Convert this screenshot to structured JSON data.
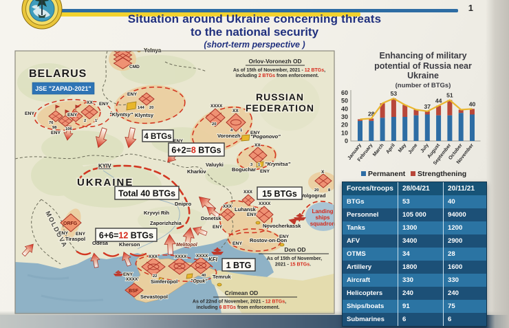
{
  "header": {
    "title_line1": "Situation around Ukraine concerning threats",
    "title_line2": "to the national security",
    "title_line3": "(short-term perspective )",
    "page_number": "1"
  },
  "chart": {
    "title_line1": "Enhancing of military",
    "title_line2": "potential of Russia near",
    "title_line3": "Ukraine",
    "subtitle": "(number of BTGs)"
  },
  "chart_data": {
    "type": "bar",
    "stacked": true,
    "categories": [
      "January",
      "February",
      "March",
      "April",
      "May",
      "June",
      "July",
      "August",
      "September",
      "October",
      "November"
    ],
    "series": [
      {
        "name": "Permanent",
        "color": "#2e6da4",
        "values": [
          25,
          25,
          29,
          30,
          30,
          32,
          33,
          32,
          32,
          35,
          33
        ]
      },
      {
        "name": "Strengthening",
        "color": "#b8473a",
        "values": [
          2,
          3,
          18,
          23,
          15,
          7,
          4,
          12,
          19,
          4,
          7
        ]
      }
    ],
    "totals": [
      27,
      28,
      47,
      53,
      45,
      39,
      37,
      44,
      51,
      39,
      40
    ],
    "total_labels": [
      null,
      28,
      null,
      53,
      null,
      null,
      37,
      44,
      51,
      null,
      40
    ],
    "line_color": "#e9b62f",
    "title": "Enhancing of military potential of Russia near Ukraine (number of BTGs)",
    "xlabel": "",
    "ylabel": "",
    "ylim": [
      0,
      60
    ],
    "yticks": [
      0,
      10,
      20,
      30,
      40,
      50,
      60
    ],
    "legend_position": "bottom",
    "grid": false
  },
  "table": {
    "headers": [
      "Forces/troops",
      "28/04/21",
      "20/11/21"
    ],
    "rows": [
      [
        "BTGs",
        "53",
        "40"
      ],
      [
        "Personnel",
        "105 000",
        "94000"
      ],
      [
        "Tanks",
        "1300",
        "1200"
      ],
      [
        "AFV",
        "3400",
        "2900"
      ],
      [
        "OTMS",
        "34",
        "28"
      ],
      [
        "Artillery",
        "1800",
        "1600"
      ],
      [
        "Aircraft",
        "330",
        "330"
      ],
      [
        "Helicopters",
        "240",
        "240"
      ],
      [
        "Ships/boats",
        "91",
        "75"
      ],
      [
        "Submarines",
        "6",
        "6"
      ]
    ]
  },
  "map": {
    "countries": {
      "belarus": "BELARUS",
      "russia_line1": "RUSSIAN",
      "russia_line2": "FEDERATION",
      "ukraine": "UKRAINE",
      "moldova": "MOLDOVA"
    },
    "exercise_label": "JSE \"ZAPAD-2021\"",
    "cities": {
      "yelnya": "Yelnya",
      "klyntsy_range": "\"Klyntsy\"",
      "klyntsy": "Klyntsy",
      "kyiv": "KYIV",
      "kharkiv": "Kharkiv",
      "valuyki": "Valuyki",
      "boguchar": "Boguchar",
      "voronezh": "Voronezh",
      "pogonovo": "\"Pogonovo\"",
      "krynitsa": "\"Krynitsa\"",
      "dnipro": "Dnipro",
      "kryvyi_rih": "Kryvyi Rih",
      "zaporizhzhia": "Zaporizhzhia",
      "donetsk": "Donetsk",
      "luhansk": "Luhansk",
      "novocherkassk": "Novocherkassk",
      "rostov": "Rostov-on-Don",
      "volgograd": "Volgograd",
      "tiraspol": "Tiraspol",
      "odesa": "Odesa",
      "kherson": "Kherson",
      "melitopol": "Melitopol",
      "opuk": "\"Opuk\"",
      "simferopol": "Simferopol",
      "sevastopol": "Sevastopol",
      "temruk": "Temruk"
    },
    "markers": {
      "cmd": "CMD",
      "eny": "ENY",
      "bsf": "BSF",
      "orfg": "ORFG",
      "kfl": "KFl",
      "x": "X",
      "xx": "XX",
      "xxx": "XXX",
      "xxxx": "XXXX",
      "xxxx_naval": "XXXX'"
    },
    "unit_numbers": {
      "n2": "2",
      "n1": "1",
      "n144": "144",
      "n20": "20",
      "n98": "98",
      "n106": "106",
      "n76": "76",
      "n4": "4",
      "n3": "3",
      "n22": "22",
      "n40": "40",
      "n8": "8"
    },
    "btg_boxes": {
      "btg4": "4 BTGs",
      "btg8_pre": "6+2=",
      "btg8_red": "8",
      "btg8_post": " BTGs",
      "total": "Total 40 BTGs",
      "btg15": "15 BTGs",
      "btg12_pre": "6+6=",
      "btg12_red": "12",
      "btg12_post": " BTGs",
      "btg1": "1 BTG"
    },
    "od_notes": {
      "orlov_title": "Orlov-Voronezh OD",
      "orlov_line1_pre": "As of 15th of November, 2021 - ",
      "orlov_line1_red": "12 BTGs",
      "orlov_line1_post": ",",
      "orlov_line2_pre": "including ",
      "orlov_line2_red": "2 BTGs",
      "orlov_line2_post": " from enforcement.",
      "don_title": "Don OD",
      "don_line1": "As of 15th of November,",
      "don_line2_pre": "2021 - ",
      "don_line2_red": "15 BTGs",
      "don_line2_post": ".",
      "crimean_title": "Crimean OD",
      "crimean_line1_pre": "As of 22nd of November, 2021 - ",
      "crimean_line1_red": "12 BTGs",
      "crimean_line1_post": ",",
      "crimean_line2_pre": "including ",
      "crimean_line2_red": "6 BTGs",
      "crimean_line2_post": " from enforcement."
    },
    "landing_squadron": {
      "line1": "Landing",
      "line2": "ships",
      "line3": "squadron"
    }
  }
}
